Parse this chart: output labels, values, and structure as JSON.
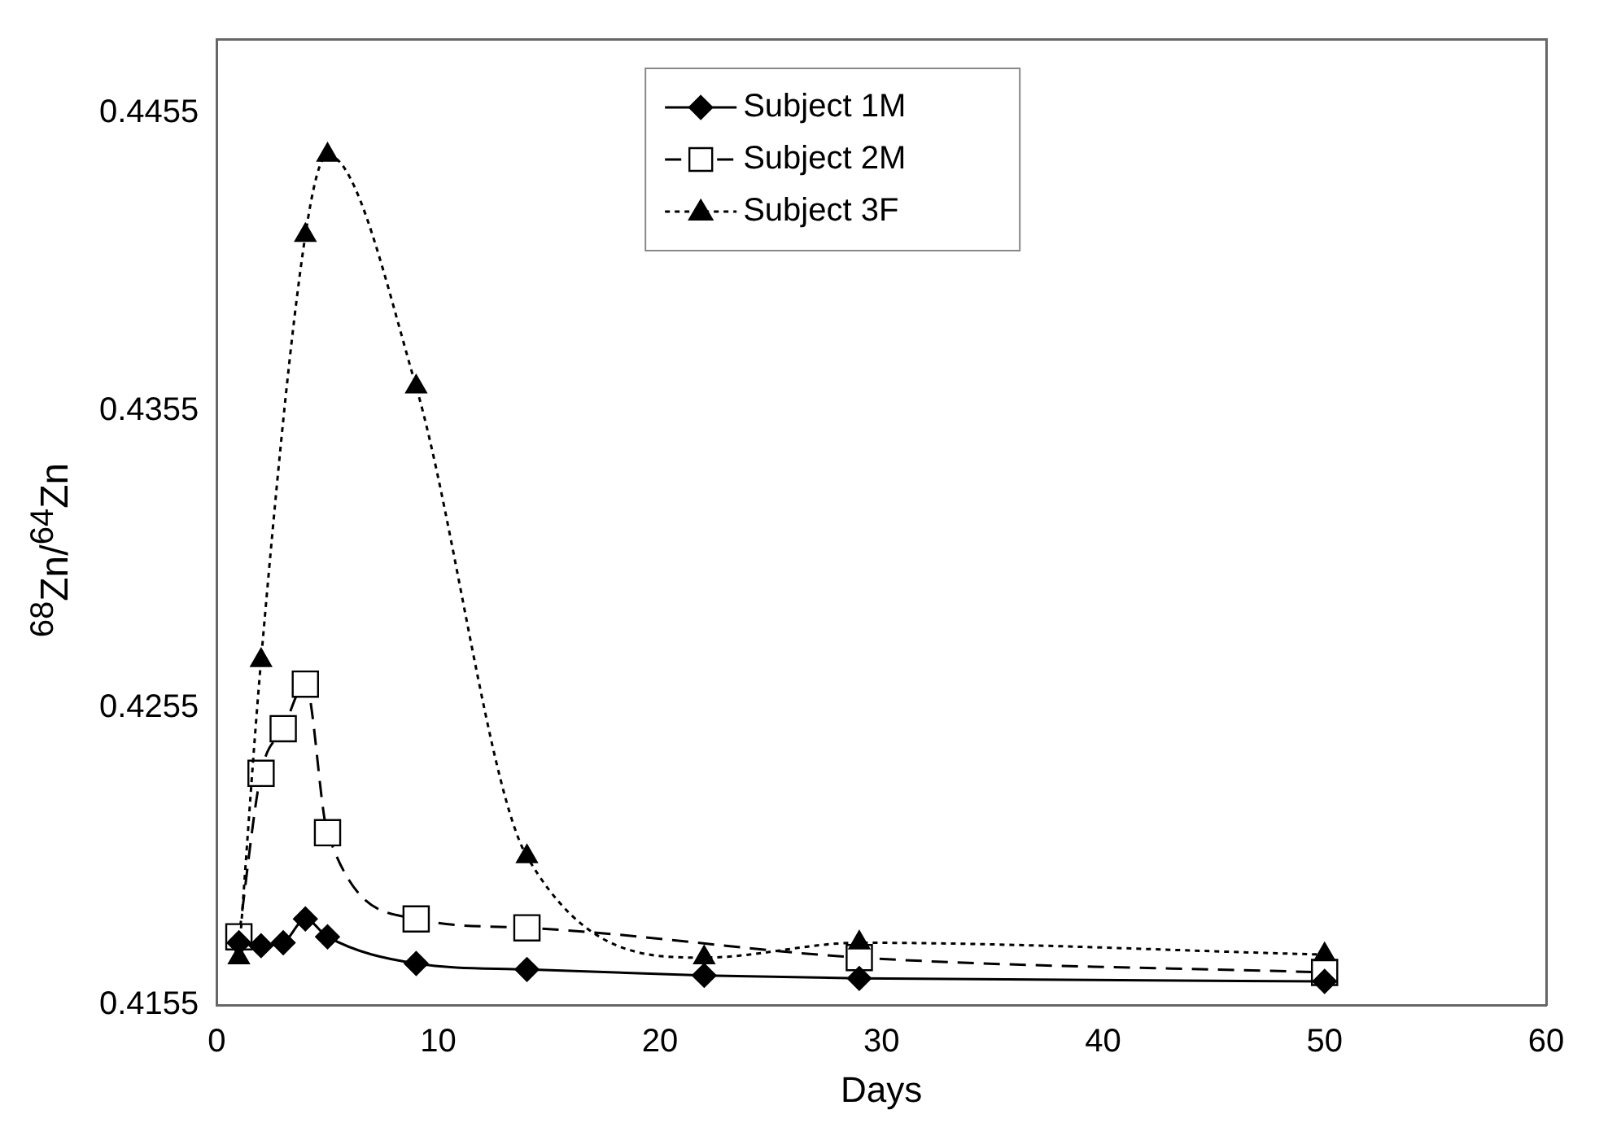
{
  "chart_data": {
    "type": "line",
    "xlabel": "Days",
    "ylabel": "$^{68}$Zn/$^{64}$Zn",
    "xlim": [
      0,
      60
    ],
    "xticks": [
      0,
      10,
      20,
      30,
      40,
      50,
      60
    ],
    "ylim": [
      0.4155,
      0.448
    ],
    "yticks": [
      0.4155,
      0.4255,
      0.4355,
      0.4455
    ],
    "grid": false,
    "legend": "top",
    "series": [
      {
        "name": "Subject 1M",
        "color": "#000000",
        "marker": "diamond",
        "line_style": "solid",
        "x": [
          1,
          2,
          3,
          4,
          5,
          9,
          14,
          22,
          29,
          50
        ],
        "values": [
          0.4176,
          0.4175,
          0.4176,
          0.4184,
          0.4178,
          0.4169,
          0.4167,
          0.4165,
          0.4164,
          0.4163
        ]
      },
      {
        "name": "Subject 2M",
        "color": "#000000",
        "marker": "square",
        "line_style": "dashed",
        "x": [
          1,
          2,
          3,
          4,
          5,
          9,
          14,
          29,
          50
        ],
        "values": [
          0.4178,
          0.4233,
          0.4248,
          0.4263,
          0.4213,
          0.4184,
          0.4181,
          0.4171,
          0.4166
        ]
      },
      {
        "name": "Subject 3F",
        "color": "#000000",
        "marker": "triangle",
        "line_style": "dotted",
        "x": [
          1,
          2,
          4,
          5,
          9,
          14,
          22,
          29,
          50
        ],
        "values": [
          0.4171,
          0.4271,
          0.4414,
          0.4441,
          0.4363,
          0.4205,
          0.4171,
          0.4176,
          0.4172
        ]
      }
    ]
  }
}
